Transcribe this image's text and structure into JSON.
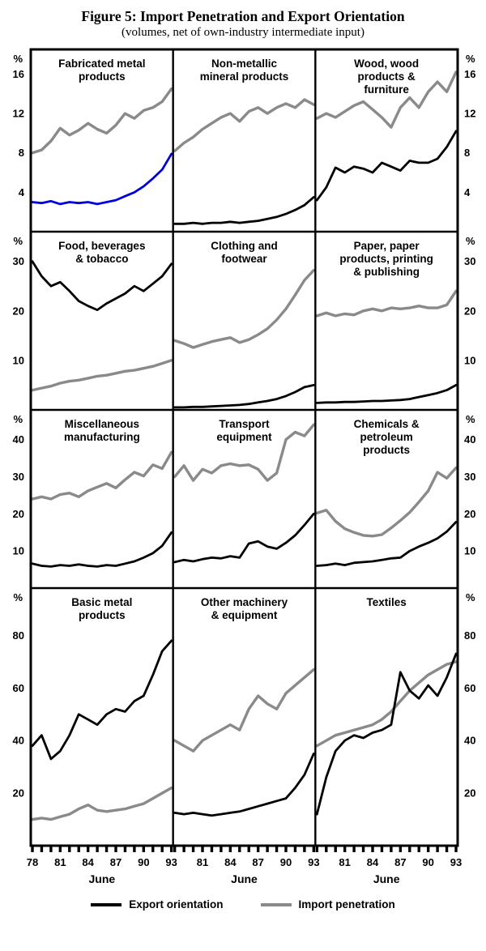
{
  "figure": {
    "title": "Figure 5: Import Penetration and Export Orientation",
    "subtitle": "(volumes, net of own-industry intermediate input)"
  },
  "legend": {
    "items": [
      {
        "id": "export-orientation",
        "label": "Export orientation",
        "color": "#000000"
      },
      {
        "id": "import-penetration",
        "label": "Import penetration",
        "color": "#8a8a8a"
      }
    ]
  },
  "chart_data": {
    "type": "line",
    "x_years": [
      78,
      79,
      80,
      81,
      82,
      83,
      84,
      85,
      86,
      87,
      88,
      89,
      90,
      91,
      92,
      93
    ],
    "x_axis_label": "June",
    "x_tick_labels_first": [
      "78",
      "81",
      "84",
      "87",
      "90",
      "93"
    ],
    "x_tick_labels_rest": [
      "81",
      "84",
      "87",
      "90",
      "93"
    ],
    "pct_label": "%",
    "grid": true,
    "legend_position": "bottom",
    "rows": [
      {
        "ylim": [
          0,
          18.5
        ],
        "ticks": [
          16,
          12,
          8,
          4
        ]
      },
      {
        "ylim": [
          0,
          36
        ],
        "ticks": [
          30,
          20,
          10
        ]
      },
      {
        "ylim": [
          0,
          48
        ],
        "ticks": [
          40,
          30,
          20,
          10
        ]
      },
      {
        "ylim": [
          0,
          98
        ],
        "ticks": [
          80,
          60,
          40,
          20
        ]
      }
    ],
    "panels": [
      {
        "id": "fabricated-metal-products",
        "title_lines": [
          "Fabricated metal",
          "products"
        ],
        "series": [
          {
            "id": "export-orientation",
            "name": "Export orientation",
            "color": "#0000dd",
            "values": [
              3.0,
              2.9,
              3.1,
              2.8,
              3.0,
              2.9,
              3.0,
              2.8,
              3.0,
              3.2,
              3.6,
              4.0,
              4.6,
              5.4,
              6.3,
              7.9
            ]
          },
          {
            "id": "import-penetration",
            "name": "Import penetration",
            "color": "#8a8a8a",
            "values": [
              8.0,
              8.3,
              9.2,
              10.5,
              9.8,
              10.3,
              11.0,
              10.4,
              10.0,
              10.8,
              12.0,
              11.5,
              12.3,
              12.6,
              13.2,
              14.5
            ]
          }
        ]
      },
      {
        "id": "non-metallic-mineral-products",
        "title_lines": [
          "Non-metallic",
          "mineral products"
        ],
        "series": [
          {
            "id": "export-orientation",
            "name": "Export orientation",
            "color": "#000000",
            "values": [
              0.8,
              0.8,
              0.9,
              0.8,
              0.9,
              0.9,
              1.0,
              0.9,
              1.0,
              1.1,
              1.3,
              1.5,
              1.8,
              2.2,
              2.7,
              3.5
            ]
          },
          {
            "id": "import-penetration",
            "name": "Import penetration",
            "color": "#8a8a8a",
            "values": [
              8.2,
              9.0,
              9.6,
              10.4,
              11.0,
              11.6,
              12.0,
              11.2,
              12.2,
              12.6,
              12.0,
              12.6,
              13.0,
              12.6,
              13.4,
              12.9
            ]
          }
        ]
      },
      {
        "id": "wood-products-furniture",
        "title_lines": [
          "Wood, wood",
          "products &",
          "furniture"
        ],
        "series": [
          {
            "id": "export-orientation",
            "name": "Export orientation",
            "color": "#000000",
            "values": [
              3.2,
              4.5,
              6.5,
              6.0,
              6.6,
              6.4,
              6.0,
              7.0,
              6.6,
              6.2,
              7.2,
              7.0,
              7.0,
              7.4,
              8.6,
              10.2
            ]
          },
          {
            "id": "import-penetration",
            "name": "Import penetration",
            "color": "#8a8a8a",
            "values": [
              11.5,
              12.0,
              11.6,
              12.2,
              12.8,
              13.2,
              12.4,
              11.6,
              10.6,
              12.6,
              13.6,
              12.6,
              14.2,
              15.2,
              14.2,
              16.2
            ]
          }
        ]
      },
      {
        "id": "food-beverages-tobacco",
        "title_lines": [
          "Food, beverages",
          "& tobacco"
        ],
        "series": [
          {
            "id": "export-orientation",
            "name": "Export orientation",
            "color": "#000000",
            "values": [
              30.0,
              27.0,
              25.0,
              25.8,
              24.0,
              22.0,
              21.0,
              20.2,
              21.5,
              22.5,
              23.5,
              25.0,
              24.0,
              25.5,
              27.0,
              29.5
            ]
          },
          {
            "id": "import-penetration",
            "name": "Import penetration",
            "color": "#8a8a8a",
            "values": [
              4.0,
              4.4,
              4.8,
              5.4,
              5.8,
              6.0,
              6.4,
              6.8,
              7.0,
              7.4,
              7.8,
              8.0,
              8.4,
              8.8,
              9.4,
              10.0
            ]
          }
        ]
      },
      {
        "id": "clothing-and-footwear",
        "title_lines": [
          "Clothing  and",
          "footwear"
        ],
        "series": [
          {
            "id": "export-orientation",
            "name": "Export orientation",
            "color": "#000000",
            "values": [
              0.5,
              0.5,
              0.6,
              0.6,
              0.7,
              0.8,
              0.9,
              1.0,
              1.2,
              1.5,
              1.8,
              2.2,
              2.8,
              3.6,
              4.6,
              5.0
            ]
          },
          {
            "id": "import-penetration",
            "name": "Import penetration",
            "color": "#8a8a8a",
            "values": [
              14.0,
              13.4,
              12.6,
              13.2,
              13.8,
              14.2,
              14.6,
              13.6,
              14.2,
              15.2,
              16.4,
              18.2,
              20.4,
              23.2,
              26.2,
              28.2
            ]
          }
        ]
      },
      {
        "id": "paper-products-printing-publishing",
        "title_lines": [
          "Paper, paper",
          "products, printing",
          "& publishing"
        ],
        "series": [
          {
            "id": "export-orientation",
            "name": "Export orientation",
            "color": "#000000",
            "values": [
              1.4,
              1.5,
              1.5,
              1.6,
              1.6,
              1.7,
              1.8,
              1.8,
              1.9,
              2.0,
              2.2,
              2.6,
              3.0,
              3.4,
              4.0,
              5.0
            ]
          },
          {
            "id": "import-penetration",
            "name": "Import penetration",
            "color": "#8a8a8a",
            "values": [
              19.0,
              19.6,
              19.0,
              19.4,
              19.2,
              20.0,
              20.4,
              20.0,
              20.6,
              20.4,
              20.6,
              21.0,
              20.6,
              20.6,
              21.2,
              24.0
            ]
          }
        ]
      },
      {
        "id": "miscellaneous-manufacturing",
        "title_lines": [
          "Miscellaneous",
          "manufacturing"
        ],
        "series": [
          {
            "id": "export-orientation",
            "name": "Export orientation",
            "color": "#000000",
            "values": [
              6.6,
              6.0,
              5.8,
              6.2,
              6.0,
              6.4,
              6.0,
              5.8,
              6.2,
              6.0,
              6.6,
              7.2,
              8.2,
              9.4,
              11.4,
              15.0
            ]
          },
          {
            "id": "import-penetration",
            "name": "Import penetration",
            "color": "#8a8a8a",
            "values": [
              24.0,
              24.6,
              24.0,
              25.2,
              25.6,
              24.6,
              26.2,
              27.2,
              28.2,
              27.0,
              29.2,
              31.2,
              30.2,
              33.2,
              32.2,
              36.6
            ]
          }
        ]
      },
      {
        "id": "transport-equipment",
        "title_lines": [
          "Transport",
          "equipment"
        ],
        "series": [
          {
            "id": "export-orientation",
            "name": "Export orientation",
            "color": "#000000",
            "values": [
              7.0,
              7.6,
              7.2,
              7.8,
              8.2,
              8.0,
              8.6,
              8.2,
              12.0,
              12.6,
              11.2,
              10.6,
              12.2,
              14.2,
              17.0,
              20.0
            ]
          },
          {
            "id": "import-penetration",
            "name": "Import penetration",
            "color": "#8a8a8a",
            "values": [
              30.0,
              33.0,
              29.0,
              32.0,
              31.0,
              33.0,
              33.5,
              33.0,
              33.2,
              32.0,
              29.0,
              31.0,
              40.0,
              42.0,
              41.0,
              44.0
            ]
          }
        ]
      },
      {
        "id": "chemicals-petroleum-products",
        "title_lines": [
          "Chemicals &",
          "petroleum",
          "products"
        ],
        "series": [
          {
            "id": "export-orientation",
            "name": "Export orientation",
            "color": "#000000",
            "values": [
              6.0,
              6.2,
              6.6,
              6.2,
              6.8,
              7.0,
              7.2,
              7.6,
              8.0,
              8.2,
              10.0,
              11.2,
              12.2,
              13.4,
              15.2,
              17.8
            ]
          },
          {
            "id": "import-penetration",
            "name": "Import penetration",
            "color": "#8a8a8a",
            "values": [
              20.2,
              21.0,
              18.0,
              16.0,
              15.0,
              14.2,
              14.0,
              14.4,
              16.2,
              18.2,
              20.4,
              23.2,
              26.2,
              31.2,
              29.6,
              32.4
            ]
          }
        ]
      },
      {
        "id": "basic-metal-products",
        "title_lines": [
          "Basic metal",
          "products"
        ],
        "series": [
          {
            "id": "export-orientation",
            "name": "Export orientation",
            "color": "#000000",
            "values": [
              38,
              42,
              33,
              36,
              42,
              50,
              48,
              46,
              50,
              52,
              51,
              55,
              57,
              65,
              74,
              78
            ]
          },
          {
            "id": "import-penetration",
            "name": "Import penetration",
            "color": "#8a8a8a",
            "values": [
              10,
              10.5,
              10,
              11,
              12,
              14,
              15.5,
              13.5,
              13,
              13.5,
              14,
              15,
              16,
              18,
              20,
              22
            ]
          }
        ]
      },
      {
        "id": "other-machinery-equipment",
        "title_lines": [
          "Other machinery",
          "& equipment"
        ],
        "series": [
          {
            "id": "export-orientation",
            "name": "Export orientation",
            "color": "#000000",
            "values": [
              12.5,
              12,
              12.5,
              12,
              11.5,
              12,
              12.5,
              13,
              14,
              15,
              16,
              17,
              18,
              22,
              27,
              35
            ]
          },
          {
            "id": "import-penetration",
            "name": "Import penetration",
            "color": "#8a8a8a",
            "values": [
              40,
              38,
              36,
              40,
              42,
              44,
              46,
              44,
              52,
              57,
              54,
              52,
              58,
              61,
              64,
              67
            ]
          }
        ]
      },
      {
        "id": "textiles",
        "title_lines": [
          "Textiles"
        ],
        "series": [
          {
            "id": "export-orientation",
            "name": "Export orientation",
            "color": "#000000",
            "values": [
              12,
              26,
              36,
              40,
              42,
              41,
              43,
              44,
              46,
              66,
              59,
              56,
              61,
              57,
              64,
              73
            ]
          },
          {
            "id": "import-penetration",
            "name": "Import penetration",
            "color": "#8a8a8a",
            "values": [
              38,
              40,
              42,
              43,
              44,
              45,
              46,
              48,
              51,
              55,
              59,
              62,
              65,
              67,
              69,
              70
            ]
          }
        ]
      }
    ]
  }
}
